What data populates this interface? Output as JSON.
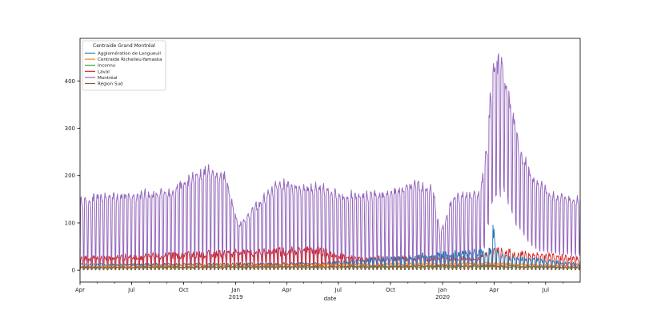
{
  "chart_data": {
    "type": "line",
    "xlabel": "date",
    "ylabel": "",
    "ylim": [
      -25,
      490
    ],
    "xlim": [
      "2018-04-01",
      "2020-08-31"
    ],
    "yticks": [
      0,
      100,
      200,
      300,
      400
    ],
    "xticks": [
      {
        "date": "2018-04-01",
        "label": "Apr",
        "sub": ""
      },
      {
        "date": "2018-07-01",
        "label": "Jul",
        "sub": ""
      },
      {
        "date": "2018-10-01",
        "label": "Oct",
        "sub": ""
      },
      {
        "date": "2019-01-01",
        "label": "Jan",
        "sub": "2019"
      },
      {
        "date": "2019-04-01",
        "label": "Apr",
        "sub": ""
      },
      {
        "date": "2019-07-01",
        "label": "Jul",
        "sub": ""
      },
      {
        "date": "2019-10-01",
        "label": "Oct",
        "sub": ""
      },
      {
        "date": "2020-01-01",
        "label": "Jan",
        "sub": "2020"
      },
      {
        "date": "2020-04-01",
        "label": "Apr",
        "sub": ""
      },
      {
        "date": "2020-07-01",
        "label": "Jul",
        "sub": ""
      }
    ],
    "grid": false,
    "legend": {
      "title": "Centraide Grand Montréal",
      "location": "upper-left"
    },
    "series": [
      {
        "name": "Agglomération de Longueuil",
        "color": "#1f77b4"
      },
      {
        "name": "Centraide Richelieu-Yamaska",
        "color": "#ff7f0e"
      },
      {
        "name": "Inconnu",
        "color": "#2ca02c"
      },
      {
        "name": "Laval",
        "color": "#d62728"
      },
      {
        "name": "Montréal",
        "color": "#9467bd"
      },
      {
        "name": "Région Sud",
        "color": "#8c564b"
      }
    ],
    "description_points": {
      "Montréal": {
        "weekday_peak": [
          [
            "2018-04-01",
            150
          ],
          [
            "2018-06-01",
            160
          ],
          [
            "2018-09-01",
            165
          ],
          [
            "2018-11-10",
            215
          ],
          [
            "2018-12-15",
            200
          ],
          [
            "2019-01-05",
            95
          ],
          [
            "2019-03-15",
            185
          ],
          [
            "2019-06-01",
            175
          ],
          [
            "2019-07-15",
            160
          ],
          [
            "2019-10-01",
            165
          ],
          [
            "2019-11-15",
            185
          ],
          [
            "2019-12-15",
            170
          ],
          [
            "2019-12-28",
            75
          ],
          [
            "2020-01-20",
            160
          ],
          [
            "2020-03-08",
            165
          ],
          [
            "2020-03-20",
            275
          ],
          [
            "2020-03-29",
            430
          ],
          [
            "2020-04-10",
            450
          ],
          [
            "2020-04-25",
            390
          ],
          [
            "2020-05-15",
            260
          ],
          [
            "2020-06-10",
            190
          ],
          [
            "2020-07-15",
            160
          ],
          [
            "2020-08-31",
            150
          ]
        ],
        "weekend_low": [
          [
            "2018-04-01",
            15
          ],
          [
            "2018-09-01",
            10
          ],
          [
            "2019-01-05",
            20
          ],
          [
            "2019-06-01",
            10
          ],
          [
            "2019-12-28",
            10
          ],
          [
            "2020-03-10",
            15
          ],
          [
            "2020-03-29",
            140
          ],
          [
            "2020-04-15",
            170
          ],
          [
            "2020-05-10",
            95
          ],
          [
            "2020-06-10",
            45
          ],
          [
            "2020-07-15",
            35
          ],
          [
            "2020-08-31",
            30
          ]
        ]
      },
      "Laval": {
        "weekday_peak": [
          [
            "2018-04-01",
            25
          ],
          [
            "2019-04-01",
            40
          ],
          [
            "2019-05-15",
            45
          ],
          [
            "2019-08-01",
            25
          ],
          [
            "2020-03-01",
            25
          ],
          [
            "2020-04-01",
            40
          ],
          [
            "2020-08-31",
            25
          ]
        ]
      },
      "Agglomération de Longueuil": {
        "weekday_peak": [
          [
            "2018-04-01",
            12
          ],
          [
            "2019-06-01",
            14
          ],
          [
            "2020-03-25",
            40
          ],
          [
            "2020-03-30",
            80
          ],
          [
            "2020-04-10",
            30
          ],
          [
            "2020-08-31",
            12
          ]
        ]
      },
      "Centraide Richelieu-Yamaska": {
        "weekday_peak": [
          [
            "2018-04-01",
            8
          ],
          [
            "2020-04-01",
            14
          ],
          [
            "2020-08-31",
            8
          ]
        ]
      },
      "Inconnu": {
        "weekday_peak": [
          [
            "2018-04-01",
            5
          ],
          [
            "2020-04-01",
            8
          ],
          [
            "2020-08-31",
            5
          ]
        ]
      },
      "Région Sud": {
        "weekday_peak": [
          [
            "2018-04-01",
            6
          ],
          [
            "2020-04-01",
            10
          ],
          [
            "2020-08-31",
            6
          ]
        ]
      }
    }
  }
}
